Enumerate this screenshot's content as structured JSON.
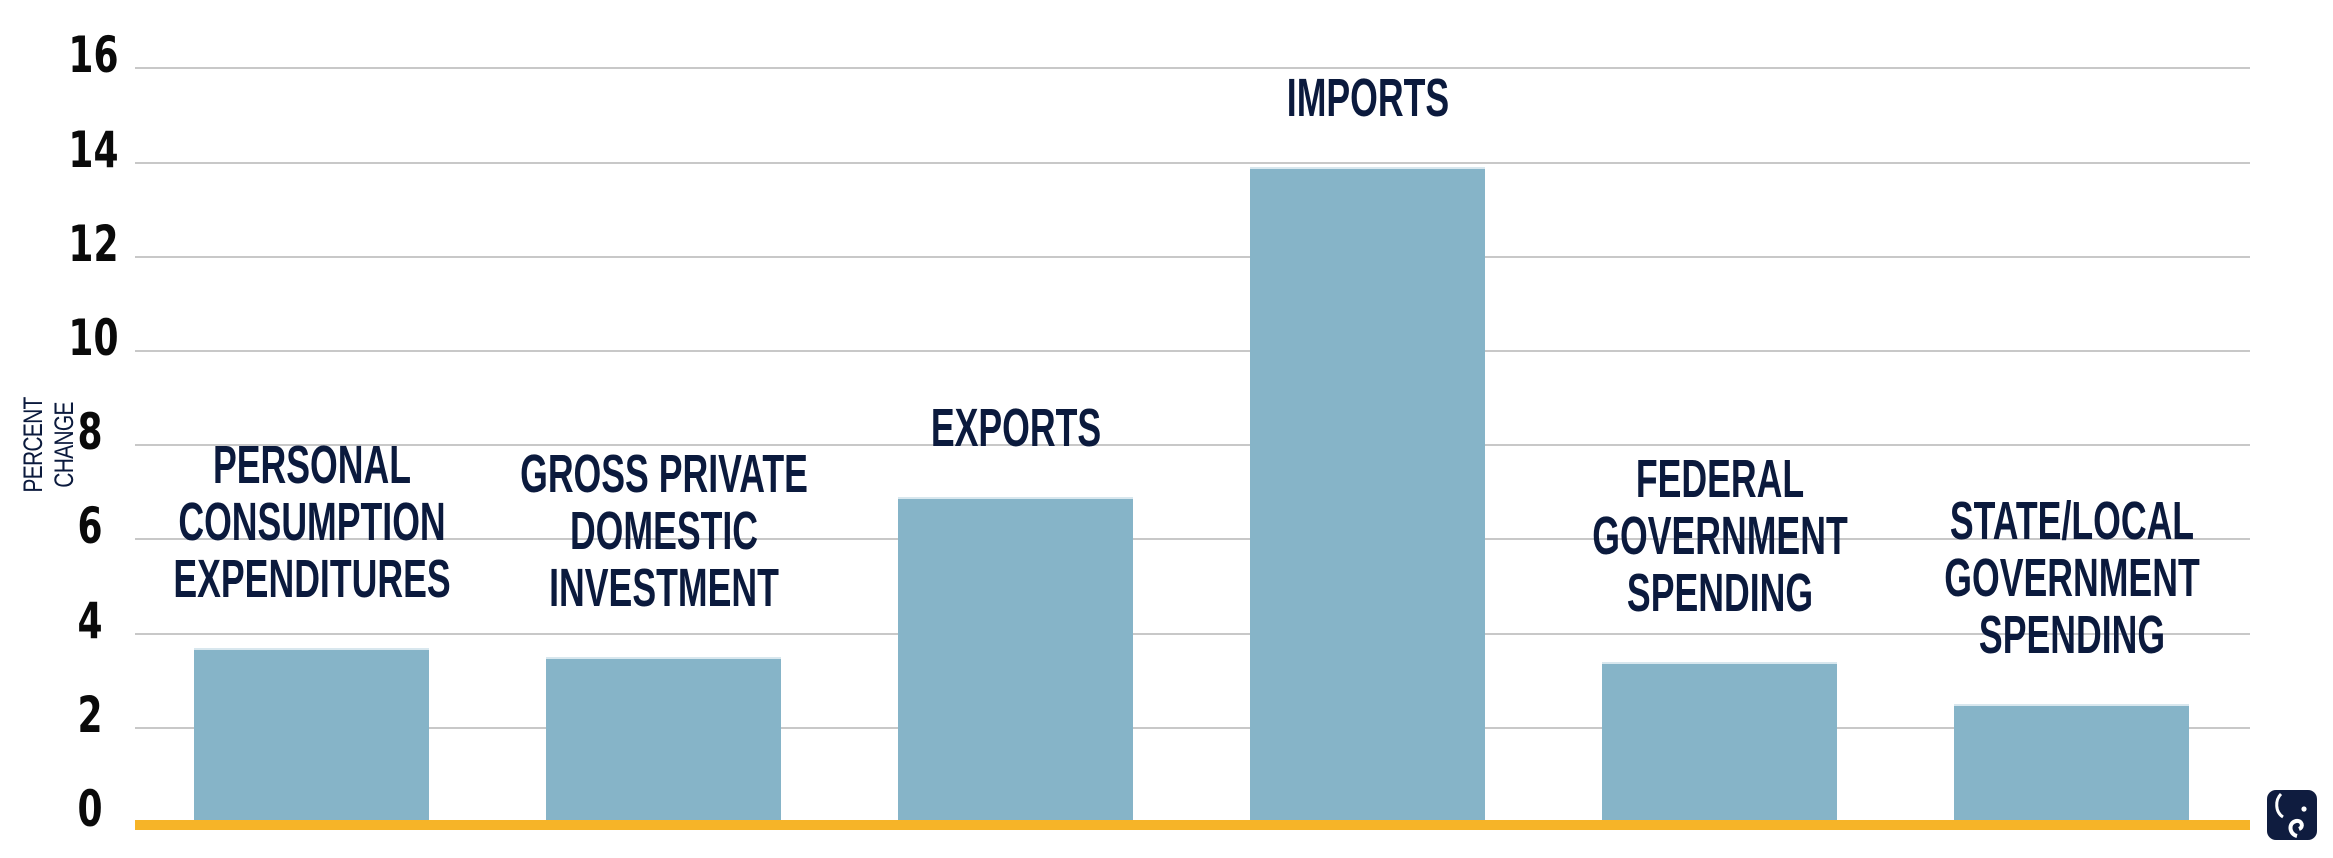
{
  "chart_data": {
    "type": "bar",
    "title": "",
    "xlabel": "",
    "ylabel": "PERCENT CHANGE",
    "ylim": [
      0,
      16
    ],
    "yticks": [
      0,
      2,
      4,
      6,
      8,
      10,
      12,
      14,
      16
    ],
    "grid": true,
    "legend": null,
    "categories": [
      "PERSONAL CONSUMPTION EXPENDITURES",
      "GROSS PRIVATE DOMESTIC INVESTMENT",
      "EXPORTS",
      "IMPORTS",
      "FEDERAL GOVERNMENT SPENDING",
      "STATE/LOCAL GOVERNMENT SPENDING"
    ],
    "values": [
      3.7,
      3.5,
      6.9,
      13.9,
      3.4,
      2.5
    ],
    "label_lines": [
      [
        "PERSONAL",
        "CONSUMPTION",
        "EXPENDITURES"
      ],
      [
        "GROSS PRIVATE",
        "DOMESTIC",
        "INVESTMENT"
      ],
      [
        "EXPORTS"
      ],
      [
        "IMPORTS"
      ],
      [
        "FEDERAL",
        "GOVERNMENT",
        "SPENDING"
      ],
      [
        "STATE/LOCAL",
        "GOVERNMENT",
        "SPENDING"
      ]
    ]
  },
  "colors": {
    "bar": "#86b4c8",
    "baseline": "#f6b428",
    "label_text": "#0b1a3d",
    "tick_text": "#0a0a0a",
    "grid": "#c8c8c8",
    "logo": "#0f1c3f"
  },
  "axis": {
    "ylabel": "PERCENT CHANGE",
    "tick_labels": [
      "16",
      "14",
      "12",
      "10",
      "8",
      "6",
      "4",
      "2",
      "0"
    ]
  },
  "logo": {
    "icon": "elephant-icon"
  }
}
